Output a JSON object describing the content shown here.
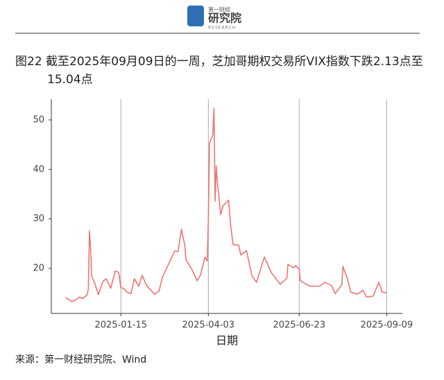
{
  "header": {
    "logo_top": "第一财经",
    "logo_main": "研究院",
    "logo_sub": "RESEARCH"
  },
  "chart_data": {
    "type": "line",
    "title": "图22  截至2025年09月09日的一周，芝加哥期权交易所VIX指数下跌2.13点至15.04点",
    "x_label": "日期",
    "color": "#f07470",
    "x": [
      "2024-11-27",
      "2024-12-02",
      "2024-12-05",
      "2024-12-09",
      "2024-12-12",
      "2024-12-16",
      "2024-12-17",
      "2024-12-18",
      "2024-12-19",
      "2024-12-20",
      "2024-12-23",
      "2024-12-26",
      "2024-12-30",
      "2025-01-02",
      "2025-01-06",
      "2025-01-10",
      "2025-01-13",
      "2025-01-15",
      "2025-01-17",
      "2025-01-21",
      "2025-01-24",
      "2025-01-27",
      "2025-01-31",
      "2025-02-03",
      "2025-02-07",
      "2025-02-14",
      "2025-02-18",
      "2025-02-21",
      "2025-02-27",
      "2025-03-04",
      "2025-03-07",
      "2025-03-10",
      "2025-03-13",
      "2025-03-14",
      "2025-03-19",
      "2025-03-24",
      "2025-03-27",
      "2025-03-31",
      "2025-04-02",
      "2025-04-03",
      "2025-04-04",
      "2025-04-07",
      "2025-04-08",
      "2025-04-09",
      "2025-04-10",
      "2025-04-11",
      "2025-04-14",
      "2025-04-16",
      "2025-04-21",
      "2025-04-23",
      "2025-04-25",
      "2025-04-30",
      "2025-05-02",
      "2025-05-07",
      "2025-05-12",
      "2025-05-16",
      "2025-05-21",
      "2025-05-23",
      "2025-05-29",
      "2025-06-03",
      "2025-06-06",
      "2025-06-12",
      "2025-06-13",
      "2025-06-18",
      "2025-06-20",
      "2025-06-23",
      "2025-06-24",
      "2025-06-30",
      "2025-07-03",
      "2025-07-11",
      "2025-07-16",
      "2025-07-22",
      "2025-07-25",
      "2025-07-31",
      "2025-08-01",
      "2025-08-05",
      "2025-08-08",
      "2025-08-14",
      "2025-08-19",
      "2025-08-22",
      "2025-08-28",
      "2025-09-02",
      "2025-09-05",
      "2025-09-09"
    ],
    "values": [
      14.1,
      13.3,
      13.5,
      14.2,
      13.9,
      14.7,
      15.9,
      27.6,
      24.1,
      18.4,
      16.8,
      14.7,
      17.4,
      17.9,
      16.0,
      19.5,
      19.2,
      16.1,
      16.0,
      15.1,
      14.9,
      17.9,
      16.4,
      18.6,
      16.5,
      14.8,
      15.4,
      18.2,
      21.1,
      23.5,
      23.4,
      27.9,
      24.7,
      21.8,
      19.9,
      17.5,
      18.7,
      22.3,
      21.5,
      30.0,
      45.3,
      47.0,
      52.3,
      33.6,
      40.7,
      37.6,
      30.9,
      32.6,
      33.8,
      28.5,
      24.8,
      24.7,
      22.7,
      23.6,
      18.4,
      17.2,
      20.9,
      22.3,
      19.2,
      17.7,
      16.8,
      18.0,
      20.8,
      20.1,
      20.6,
      19.8,
      17.5,
      16.7,
      16.4,
      16.4,
      17.2,
      16.5,
      14.9,
      16.7,
      20.4,
      17.9,
      15.2,
      14.8,
      15.6,
      14.2,
      14.4,
      17.2,
      15.2,
      15.04
    ],
    "xlim": [
      "2024-11-14",
      "2025-09-23"
    ],
    "xticks": [
      "2025-01-15",
      "2025-04-03",
      "2025-06-23",
      "2025-09-09"
    ],
    "ylim": [
      10.9,
      54.2
    ],
    "yticks": [
      20,
      30,
      40,
      50
    ],
    "grid": true
  },
  "source": "来源：第一财经研究院、Wind"
}
